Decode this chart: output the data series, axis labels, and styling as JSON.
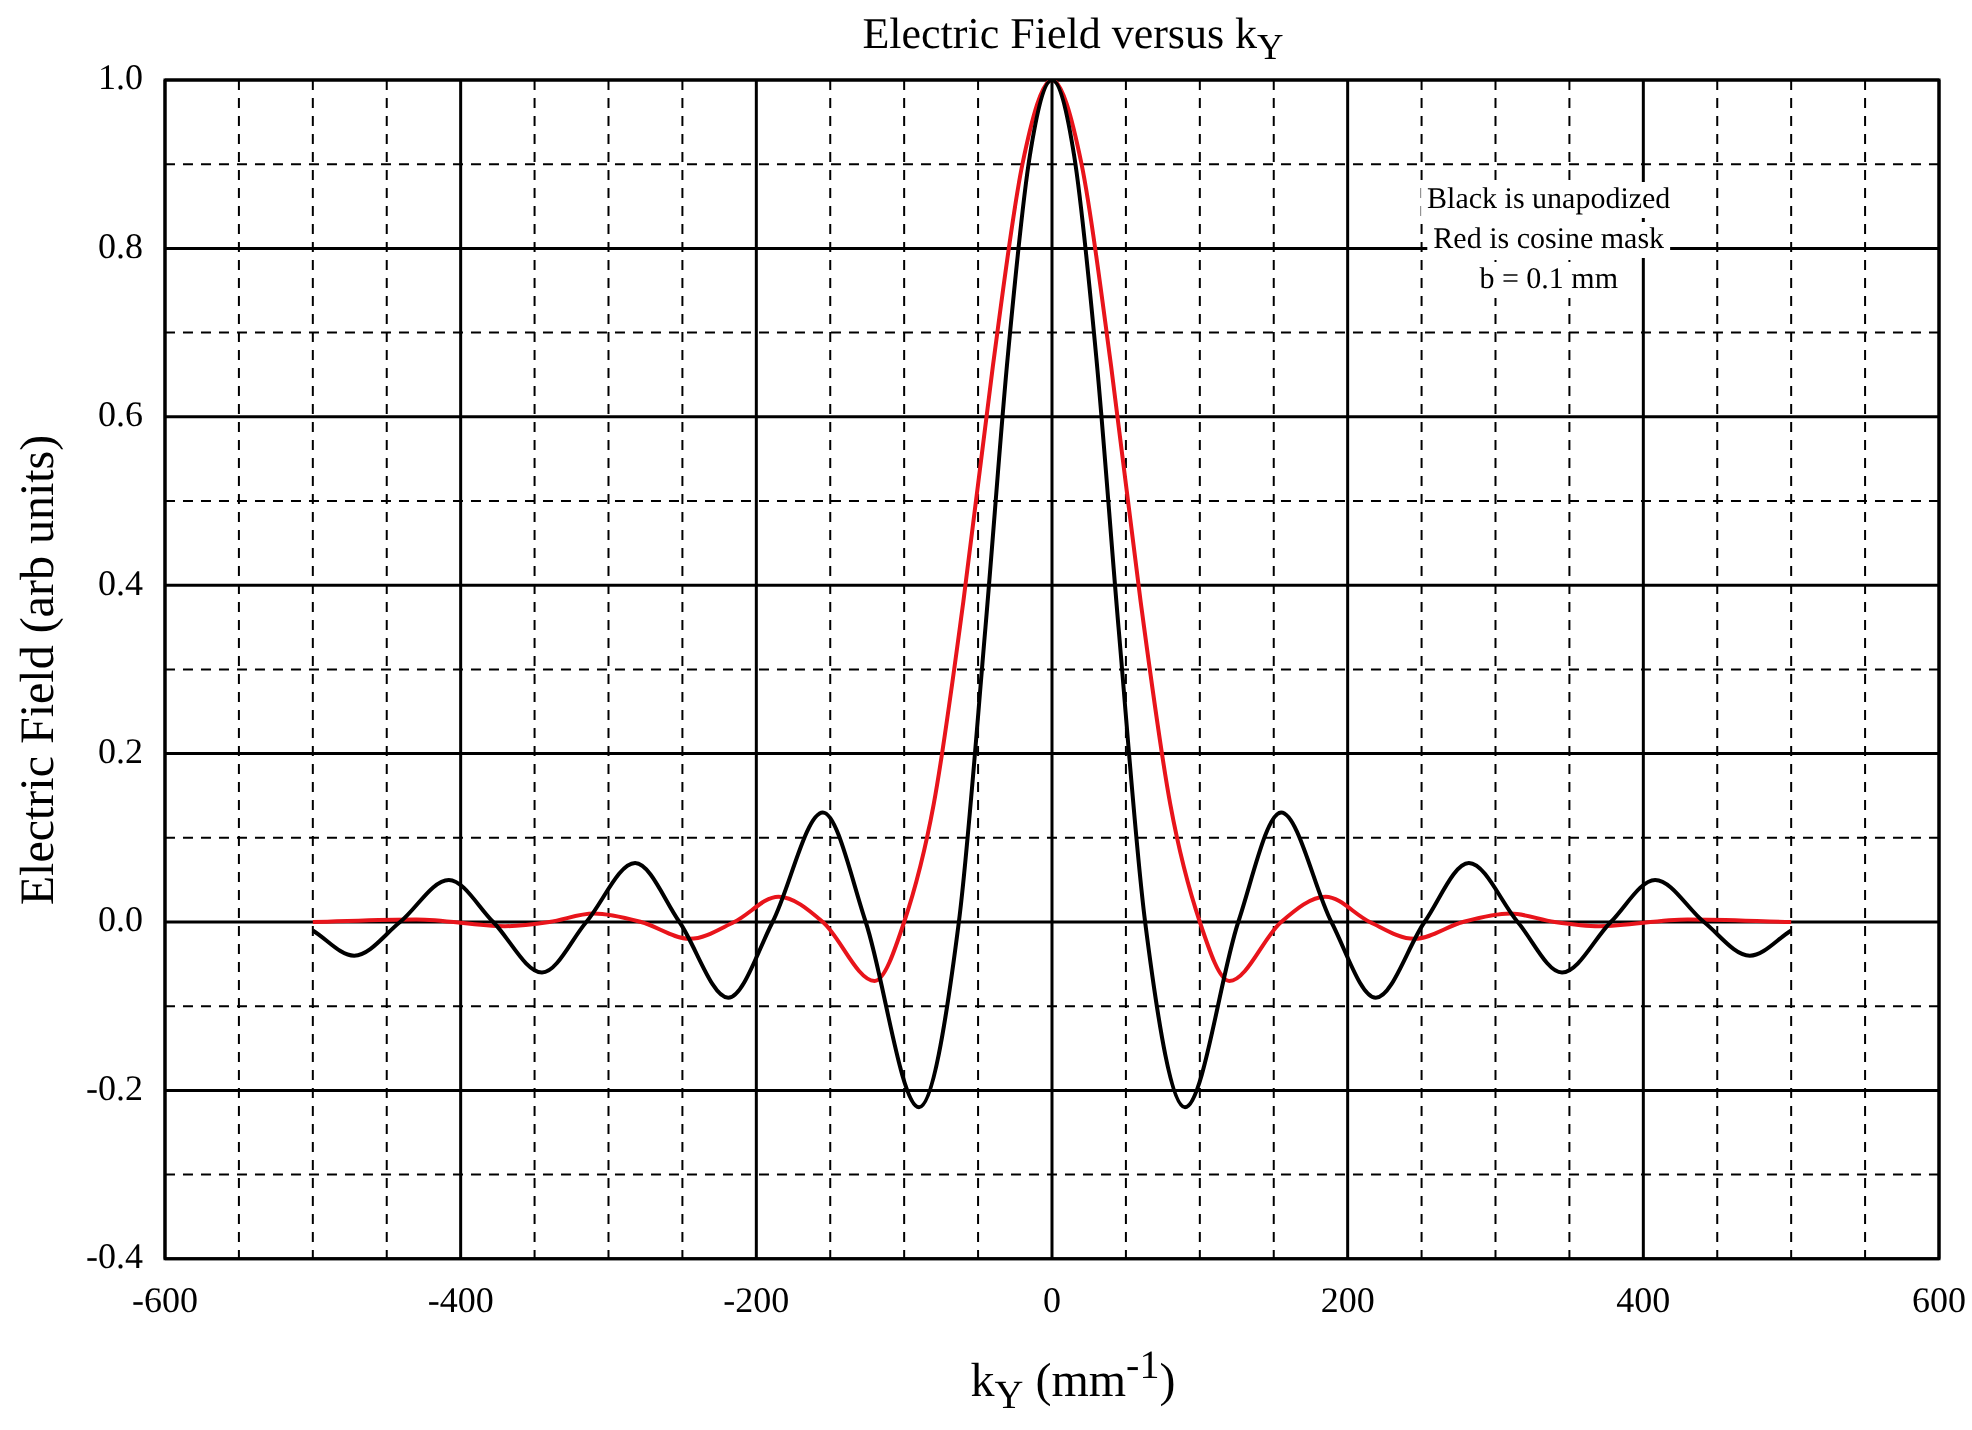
{
  "chart_data": {
    "type": "line",
    "title": "Electric Field versus k$_{Y}$",
    "xlabel": "k$_{Y}$ (mm$^{-1}$)",
    "ylabel": "Electric Field (arb units)",
    "annotations": [
      "Black is unapodized",
      "Red is cosine mask",
      "b = 0.1 mm"
    ],
    "series": [
      {
        "color": "#000000",
        "x": [
          -500,
          -472,
          -441,
          -408,
          -378,
          -345,
          -315,
          -282,
          -252,
          -219,
          -189,
          -155,
          -126,
          -90,
          -63,
          -45,
          -30,
          -15,
          0,
          15,
          30,
          45,
          63,
          90,
          126,
          155,
          189,
          219,
          252,
          282,
          315,
          345,
          378,
          408,
          441,
          472,
          500
        ],
        "values": [
          -0.01,
          -0.04,
          0,
          0.05,
          0,
          -0.06,
          0,
          0.07,
          0,
          -0.09,
          0,
          0.13,
          0,
          -0.22,
          0,
          0.35,
          0.67,
          0.91,
          1.0,
          0.91,
          0.67,
          0.35,
          0,
          -0.22,
          0,
          0.13,
          0,
          -0.09,
          0,
          0.07,
          0,
          -0.06,
          0,
          0.05,
          0,
          -0.04,
          -0.01
        ]
      },
      {
        "color": "#e8141b",
        "x": [
          -500,
          -430,
          -370,
          -340,
          -310,
          -278,
          -245,
          -215,
          -185,
          -155,
          -120,
          -100,
          -80,
          -60,
          -40,
          -20,
          0,
          20,
          40,
          60,
          80,
          100,
          120,
          155,
          185,
          215,
          245,
          278,
          310,
          340,
          370,
          430,
          500
        ],
        "values": [
          0,
          0.003,
          -0.005,
          0,
          0.01,
          0,
          -0.02,
          0,
          0.03,
          0,
          -0.07,
          0,
          0.14,
          0.38,
          0.66,
          0.9,
          1.0,
          0.9,
          0.66,
          0.38,
          0.14,
          0,
          -0.07,
          0,
          0.03,
          0,
          -0.02,
          0,
          0.01,
          0,
          -0.005,
          0.003,
          0
        ]
      }
    ],
    "xlim": [
      -600,
      600
    ],
    "xticks": [
      -600,
      {
        "value": -550,
        "label": null
      },
      {
        "value": -500,
        "label": null
      },
      {
        "value": -450,
        "label": null
      },
      -400,
      {
        "value": -350,
        "label": null
      },
      {
        "value": -300,
        "label": null
      },
      {
        "value": -250,
        "label": null
      },
      -200,
      {
        "value": -150,
        "label": null
      },
      {
        "value": -100,
        "label": null
      },
      {
        "value": -50,
        "label": null
      },
      0,
      {
        "value": 50,
        "label": null
      },
      {
        "value": 100,
        "label": null
      },
      {
        "value": 150,
        "label": null
      },
      200,
      {
        "value": 250,
        "label": null
      },
      {
        "value": 300,
        "label": null
      },
      {
        "value": 350,
        "label": null
      },
      400,
      {
        "value": 450,
        "label": null
      },
      {
        "value": 500,
        "label": null
      },
      {
        "value": 550,
        "label": null
      },
      600
    ],
    "ylim": [
      -0.4,
      1.0
    ],
    "yticks": [
      {
        "value": -0.4,
        "label": "-0.4"
      },
      {
        "value": -0.3,
        "label": null
      },
      {
        "value": -0.2,
        "label": "-0.2"
      },
      {
        "value": -0.1,
        "label": null
      },
      {
        "value": 0,
        "label": "0.0"
      },
      {
        "value": 0.1,
        "label": null
      },
      {
        "value": 0.2,
        "label": "0.2"
      },
      {
        "value": 0.3,
        "label": null
      },
      {
        "value": 0.4,
        "label": "0.4"
      },
      {
        "value": 0.5,
        "label": null
      },
      {
        "value": 0.6,
        "label": "0.6"
      },
      {
        "value": 0.7,
        "label": null
      },
      {
        "value": 0.8,
        "label": "0.8"
      },
      {
        "value": 0.9,
        "label": null
      },
      {
        "value": 1.0,
        "label": "1.0"
      }
    ],
    "grid": true,
    "legend": false,
    "marker": "none",
    "line_style": "solid"
  }
}
